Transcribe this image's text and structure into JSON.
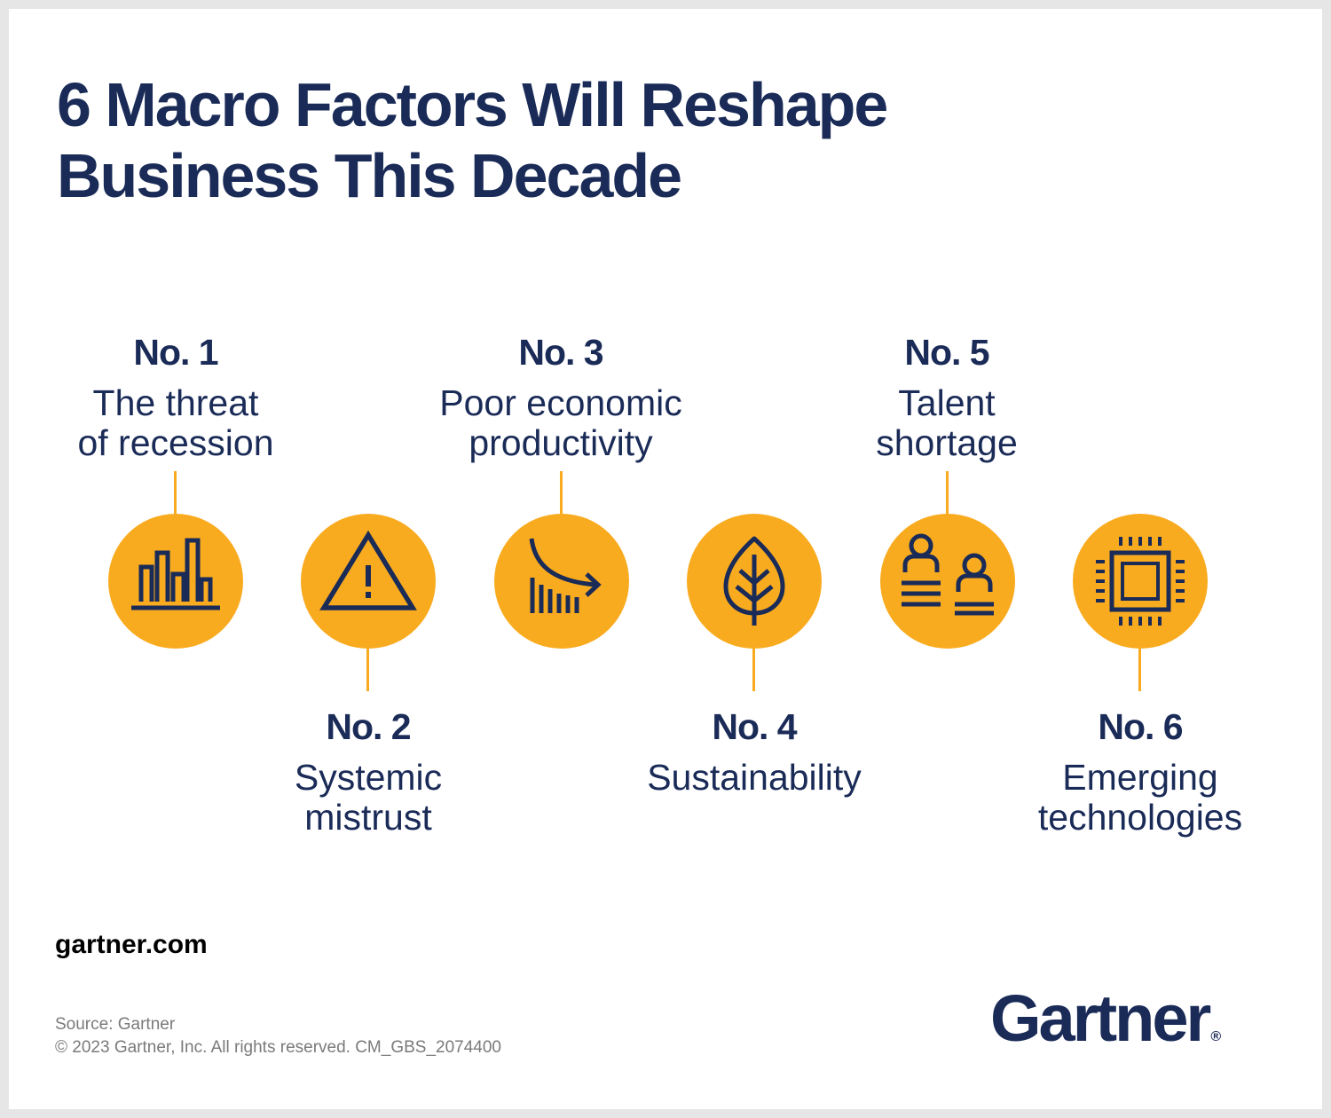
{
  "title": {
    "line1": "6 Macro Factors Will Reshape",
    "line2": "Business This Decade"
  },
  "factors": [
    {
      "number": "No. 1",
      "line1": "The threat",
      "line2": "of recession",
      "icon": "bar-chart-icon"
    },
    {
      "number": "No. 2",
      "line1": "Systemic",
      "line2": "mistrust",
      "icon": "warning-icon"
    },
    {
      "number": "No. 3",
      "line1": "Poor economic",
      "line2": "productivity",
      "icon": "declining-chart-icon"
    },
    {
      "number": "No. 4",
      "line1": "Sustainability",
      "line2": "",
      "icon": "leaf-icon"
    },
    {
      "number": "No. 5",
      "line1": "Talent",
      "line2": "shortage",
      "icon": "people-icon"
    },
    {
      "number": "No. 6",
      "line1": "Emerging",
      "line2": "technologies",
      "icon": "microchip-icon"
    }
  ],
  "footer": {
    "site": "gartner.com",
    "source": "Source: Gartner",
    "copyright": "© 2023 Gartner, Inc. All rights reserved. CM_GBS_2074400"
  },
  "logo": {
    "text": "Gartner",
    "reg": "®"
  },
  "colors": {
    "navy": "#1a2b57",
    "accent": "#f9ab1f",
    "background": "#ffffff",
    "frame": "#e6e6e6"
  }
}
